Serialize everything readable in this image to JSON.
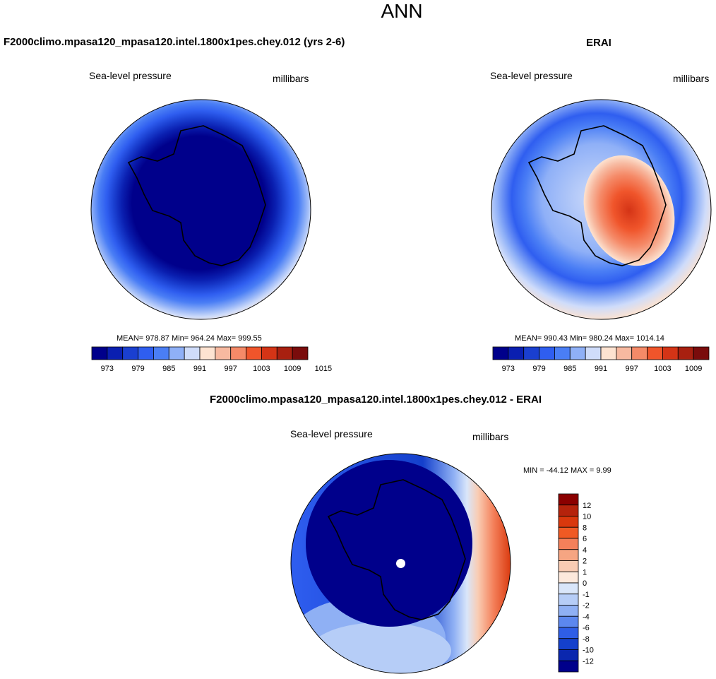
{
  "title": "ANN",
  "panels": [
    {
      "id": "model",
      "heading": "F2000climo.mpasa120_mpasa120.intel.1800x1pes.chey.012 (yrs 2-6)",
      "left_label": "Sea-level pressure",
      "right_label": "millibars",
      "stats": "MEAN= 978.87  Min= 964.24  Max= 999.55"
    },
    {
      "id": "obs",
      "heading": "ERAI",
      "left_label": "Sea-level pressure",
      "right_label": "millibars",
      "stats": "MEAN= 990.43  Min= 980.24  Max= 1014.14"
    },
    {
      "id": "diff",
      "heading": "F2000climo.mpasa120_mpasa120.intel.1800x1pes.chey.012 - ERAI",
      "left_label": "Sea-level pressure",
      "right_label": "millibars",
      "stats": "MIN = -44.12 MAX =   9.99"
    }
  ],
  "colorbars": {
    "horizontal": {
      "colors": [
        "#00008b",
        "#0a1fb0",
        "#1a3fd0",
        "#2f5ef0",
        "#4a7ef5",
        "#8fb0f7",
        "#cfdcfa",
        "#fde3d1",
        "#f7b9a0",
        "#f58a68",
        "#f0552b",
        "#d43416",
        "#a82010",
        "#7a0c0c"
      ],
      "ticks": [
        "973",
        "979",
        "985",
        "991",
        "997",
        "1003",
        "1009",
        "1015"
      ]
    },
    "vertical": {
      "colors_top_to_bottom": [
        "#8b0000",
        "#b5230c",
        "#d9380d",
        "#f05a24",
        "#f4805a",
        "#f6a582",
        "#f9ccb3",
        "#fde9dc",
        "#d9e6fa",
        "#b6cdf7",
        "#8fb0f4",
        "#5c87ee",
        "#2f5ee6",
        "#1440cc",
        "#0a27ae",
        "#00008b"
      ],
      "ticks": [
        "12",
        "10",
        "8",
        "6",
        "4",
        "2",
        "1",
        "0",
        "-1",
        "-2",
        "-4",
        "-6",
        "-8",
        "-10",
        "-12"
      ]
    }
  }
}
